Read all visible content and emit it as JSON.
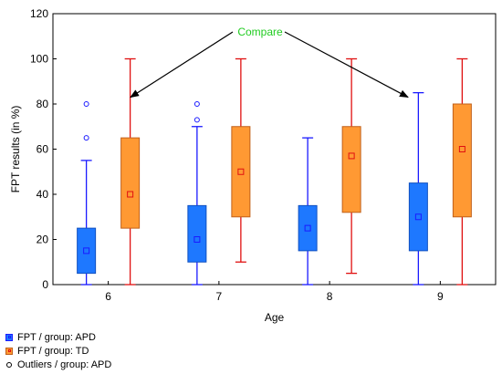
{
  "chart_data": {
    "type": "box",
    "xlabel": "Age",
    "ylabel": "FPT results (in %)",
    "categories": [
      "6",
      "7",
      "8",
      "9"
    ],
    "ylim": [
      0,
      120
    ],
    "yticks": [
      0,
      20,
      40,
      60,
      80,
      100,
      120
    ],
    "grid": false,
    "annotation": {
      "text": "Compare",
      "color": "#22cc22"
    },
    "series": [
      {
        "name": "FPT / group: APD",
        "color": "#1e78ff",
        "whisker_color": "#1a1aff",
        "boxes": [
          {
            "category": "6",
            "min": 0,
            "q1": 5,
            "median": 15,
            "q3": 25,
            "max": 55,
            "outliers": [
              65,
              80
            ]
          },
          {
            "category": "7",
            "min": 0,
            "q1": 10,
            "median": 20,
            "q3": 35,
            "max": 70,
            "outliers": [
              73,
              80
            ]
          },
          {
            "category": "8",
            "min": 0,
            "q1": 15,
            "median": 25,
            "q3": 35,
            "max": 65,
            "outliers": []
          },
          {
            "category": "9",
            "min": 0,
            "q1": 15,
            "median": 30,
            "q3": 45,
            "max": 85,
            "outliers": []
          }
        ]
      },
      {
        "name": "FPT / group: TD",
        "color": "#ff9933",
        "whisker_color": "#e01010",
        "boxes": [
          {
            "category": "6",
            "min": 0,
            "q1": 25,
            "median": 40,
            "q3": 65,
            "max": 100,
            "outliers": []
          },
          {
            "category": "7",
            "min": 10,
            "q1": 30,
            "median": 50,
            "q3": 70,
            "max": 100,
            "outliers": []
          },
          {
            "category": "8",
            "min": 5,
            "q1": 32,
            "median": 57,
            "q3": 70,
            "max": 100,
            "outliers": []
          },
          {
            "category": "9",
            "min": 0,
            "q1": 30,
            "median": 60,
            "q3": 80,
            "max": 100,
            "outliers": []
          }
        ]
      }
    ],
    "legend": {
      "placement": "bottom-left",
      "entries": [
        "FPT / group: APD",
        "FPT / group: TD",
        "Outliers / group: APD"
      ]
    }
  }
}
